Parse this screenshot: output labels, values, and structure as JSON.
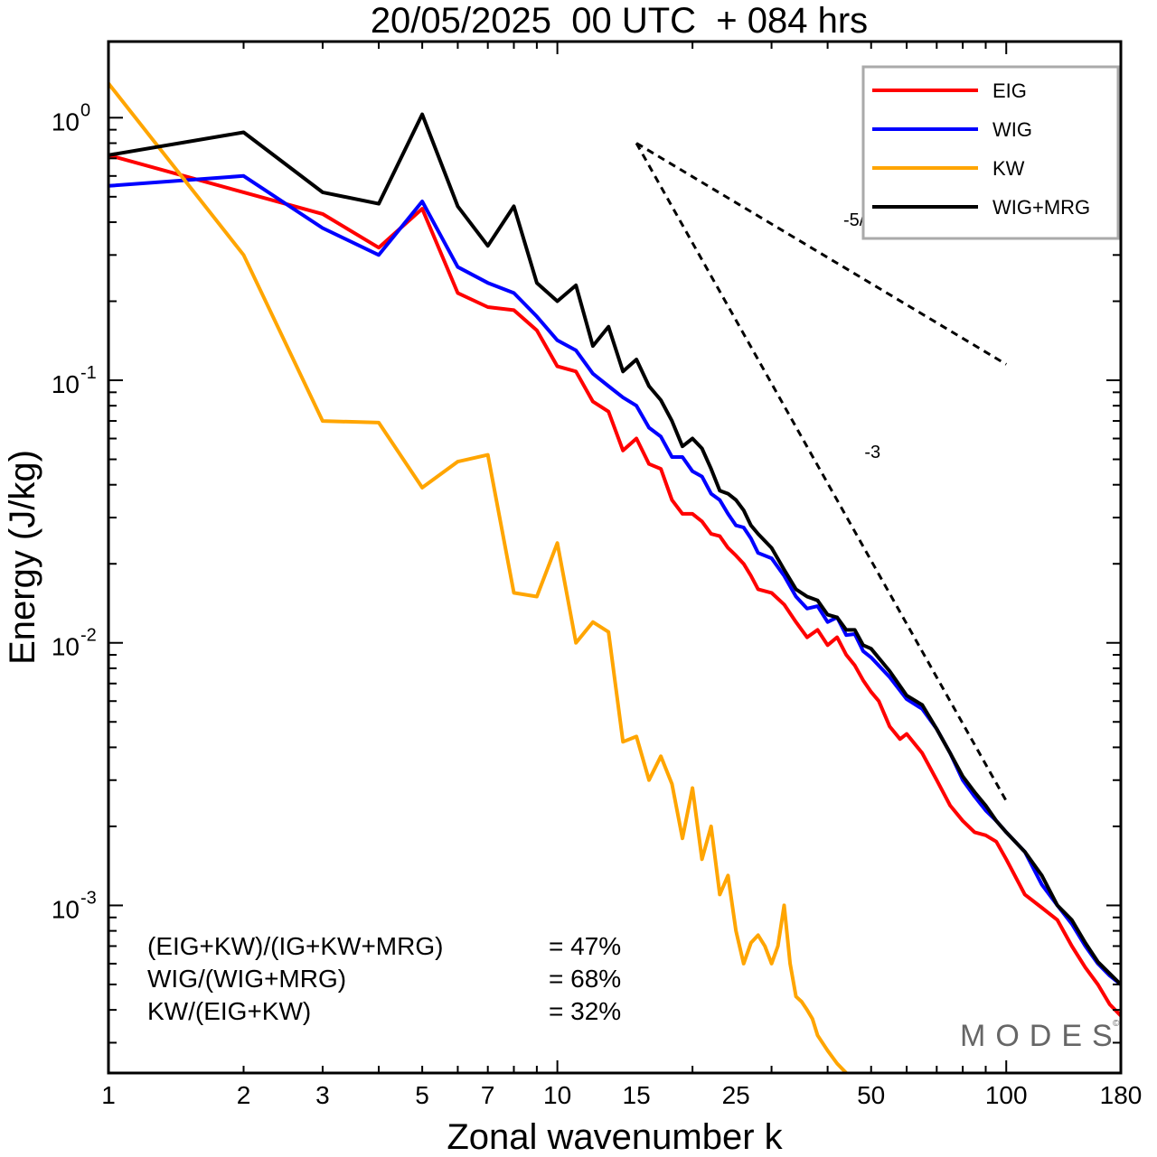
{
  "chart_data": {
    "type": "line",
    "title": "20/05/2025  00 UTC  + 084 hrs",
    "xlabel": "Zonal wavenumber k",
    "ylabel": "Energy (J/kg)",
    "xscale": "log",
    "yscale": "log",
    "xlim": [
      1,
      180
    ],
    "ylim": [
      0.00023,
      1.95
    ],
    "x_ticks": [
      1,
      2,
      3,
      5,
      7,
      10,
      15,
      25,
      50,
      100,
      180
    ],
    "x_tick_labels": [
      "1",
      "2",
      "3",
      "5",
      "7",
      "10",
      "15",
      "25",
      "50",
      "100",
      "180"
    ],
    "y_ticks": [
      {
        "value": 1,
        "base": "10",
        "exp": "0"
      },
      {
        "value": 0.1,
        "base": "10",
        "exp": "-1"
      },
      {
        "value": 0.01,
        "base": "10",
        "exp": "-2"
      },
      {
        "value": 0.001,
        "base": "10",
        "exp": "-3"
      }
    ],
    "grid": false,
    "legend_position": "top-right",
    "series": [
      {
        "name": "EIG",
        "color": "#ff0000",
        "points": [
          [
            1,
            0.72
          ],
          [
            2,
            0.52
          ],
          [
            3,
            0.43
          ],
          [
            4,
            0.32
          ],
          [
            5,
            0.45
          ],
          [
            6,
            0.215
          ],
          [
            7,
            0.19
          ],
          [
            8,
            0.185
          ],
          [
            9,
            0.155
          ],
          [
            10,
            0.113
          ],
          [
            11,
            0.108
          ],
          [
            12,
            0.083
          ],
          [
            13,
            0.076
          ],
          [
            14,
            0.054
          ],
          [
            15,
            0.06
          ],
          [
            16,
            0.048
          ],
          [
            17,
            0.046
          ],
          [
            18,
            0.035
          ],
          [
            19,
            0.031
          ],
          [
            20,
            0.031
          ],
          [
            21,
            0.029
          ],
          [
            22,
            0.026
          ],
          [
            23,
            0.0255
          ],
          [
            24,
            0.023
          ],
          [
            25,
            0.0215
          ],
          [
            26,
            0.02
          ],
          [
            27,
            0.018
          ],
          [
            28,
            0.016
          ],
          [
            30,
            0.0155
          ],
          [
            32,
            0.014
          ],
          [
            34,
            0.012
          ],
          [
            36,
            0.0105
          ],
          [
            38,
            0.0112
          ],
          [
            40,
            0.0098
          ],
          [
            42,
            0.0105
          ],
          [
            44,
            0.009
          ],
          [
            46,
            0.0082
          ],
          [
            48,
            0.0072
          ],
          [
            50,
            0.0065
          ],
          [
            52,
            0.006
          ],
          [
            55,
            0.0048
          ],
          [
            58,
            0.0043
          ],
          [
            60,
            0.0045
          ],
          [
            65,
            0.0038
          ],
          [
            70,
            0.003
          ],
          [
            75,
            0.0024
          ],
          [
            80,
            0.0021
          ],
          [
            85,
            0.0019
          ],
          [
            90,
            0.00185
          ],
          [
            95,
            0.00175
          ],
          [
            100,
            0.0015
          ],
          [
            110,
            0.0011
          ],
          [
            120,
            0.00098
          ],
          [
            130,
            0.00088
          ],
          [
            140,
            0.0007
          ],
          [
            150,
            0.00058
          ],
          [
            160,
            0.0005
          ],
          [
            170,
            0.00042
          ],
          [
            180,
            0.00038
          ]
        ]
      },
      {
        "name": "WIG",
        "color": "#0000ff",
        "points": [
          [
            1,
            0.55
          ],
          [
            2,
            0.6
          ],
          [
            3,
            0.38
          ],
          [
            4,
            0.3
          ],
          [
            5,
            0.48
          ],
          [
            6,
            0.27
          ],
          [
            7,
            0.235
          ],
          [
            8,
            0.215
          ],
          [
            9,
            0.175
          ],
          [
            10,
            0.142
          ],
          [
            11,
            0.13
          ],
          [
            12,
            0.106
          ],
          [
            13,
            0.095
          ],
          [
            14,
            0.086
          ],
          [
            15,
            0.08
          ],
          [
            16,
            0.066
          ],
          [
            17,
            0.061
          ],
          [
            18,
            0.051
          ],
          [
            19,
            0.051
          ],
          [
            20,
            0.045
          ],
          [
            21,
            0.043
          ],
          [
            22,
            0.037
          ],
          [
            23,
            0.035
          ],
          [
            24,
            0.031
          ],
          [
            25,
            0.028
          ],
          [
            26,
            0.0275
          ],
          [
            27,
            0.025
          ],
          [
            28,
            0.022
          ],
          [
            30,
            0.021
          ],
          [
            32,
            0.018
          ],
          [
            34,
            0.015
          ],
          [
            36,
            0.0135
          ],
          [
            38,
            0.0138
          ],
          [
            40,
            0.012
          ],
          [
            42,
            0.0125
          ],
          [
            44,
            0.0107
          ],
          [
            46,
            0.0108
          ],
          [
            48,
            0.0093
          ],
          [
            50,
            0.0088
          ],
          [
            55,
            0.0074
          ],
          [
            60,
            0.0061
          ],
          [
            65,
            0.0056
          ],
          [
            70,
            0.0047
          ],
          [
            75,
            0.0038
          ],
          [
            80,
            0.003
          ],
          [
            85,
            0.0026
          ],
          [
            90,
            0.0023
          ],
          [
            95,
            0.0021
          ],
          [
            100,
            0.0019
          ],
          [
            110,
            0.0016
          ],
          [
            120,
            0.0012
          ],
          [
            130,
            0.001
          ],
          [
            140,
            0.00085
          ],
          [
            150,
            0.0007
          ],
          [
            160,
            0.0006
          ],
          [
            170,
            0.00054
          ],
          [
            180,
            0.0005
          ]
        ]
      },
      {
        "name": "KW",
        "color": "#ffa500",
        "points": [
          [
            1,
            1.35
          ],
          [
            2,
            0.3
          ],
          [
            3,
            0.07
          ],
          [
            4,
            0.069
          ],
          [
            5,
            0.039
          ],
          [
            6,
            0.049
          ],
          [
            7,
            0.052
          ],
          [
            8,
            0.0155
          ],
          [
            9,
            0.015
          ],
          [
            10,
            0.024
          ],
          [
            11,
            0.01
          ],
          [
            12,
            0.012
          ],
          [
            13,
            0.011
          ],
          [
            14,
            0.0042
          ],
          [
            15,
            0.0044
          ],
          [
            16,
            0.003
          ],
          [
            17,
            0.0037
          ],
          [
            18,
            0.0029
          ],
          [
            19,
            0.0018
          ],
          [
            20,
            0.0028
          ],
          [
            21,
            0.0015
          ],
          [
            22,
            0.002
          ],
          [
            23,
            0.0011
          ],
          [
            24,
            0.0013
          ],
          [
            25,
            0.0008
          ],
          [
            26,
            0.0006
          ],
          [
            27,
            0.00072
          ],
          [
            28,
            0.00077
          ],
          [
            29,
            0.0007
          ],
          [
            30,
            0.0006
          ],
          [
            31,
            0.0007
          ],
          [
            32,
            0.001
          ],
          [
            33,
            0.0006
          ],
          [
            34,
            0.00045
          ],
          [
            35,
            0.00043
          ],
          [
            36,
            0.0004
          ],
          [
            37,
            0.00037
          ],
          [
            38,
            0.00032
          ],
          [
            40,
            0.00028
          ],
          [
            42,
            0.00025
          ],
          [
            44,
            0.00023
          ]
        ]
      },
      {
        "name": "WIG+MRG",
        "color": "#000000",
        "points": [
          [
            1,
            0.72
          ],
          [
            2,
            0.88
          ],
          [
            3,
            0.52
          ],
          [
            4,
            0.47
          ],
          [
            5,
            1.03
          ],
          [
            6,
            0.46
          ],
          [
            7,
            0.325
          ],
          [
            8,
            0.46
          ],
          [
            9,
            0.235
          ],
          [
            10,
            0.2
          ],
          [
            11,
            0.23
          ],
          [
            12,
            0.135
          ],
          [
            13,
            0.16
          ],
          [
            14,
            0.108
          ],
          [
            15,
            0.12
          ],
          [
            16,
            0.095
          ],
          [
            17,
            0.084
          ],
          [
            18,
            0.07
          ],
          [
            19,
            0.056
          ],
          [
            20,
            0.06
          ],
          [
            21,
            0.055
          ],
          [
            22,
            0.046
          ],
          [
            23,
            0.038
          ],
          [
            24,
            0.037
          ],
          [
            25,
            0.035
          ],
          [
            26,
            0.032
          ],
          [
            27,
            0.028
          ],
          [
            28,
            0.026
          ],
          [
            30,
            0.023
          ],
          [
            32,
            0.019
          ],
          [
            34,
            0.016
          ],
          [
            36,
            0.015
          ],
          [
            38,
            0.0145
          ],
          [
            40,
            0.0128
          ],
          [
            42,
            0.0125
          ],
          [
            44,
            0.0112
          ],
          [
            46,
            0.0112
          ],
          [
            48,
            0.0098
          ],
          [
            50,
            0.0095
          ],
          [
            55,
            0.0078
          ],
          [
            60,
            0.0063
          ],
          [
            65,
            0.0058
          ],
          [
            70,
            0.0047
          ],
          [
            75,
            0.0038
          ],
          [
            80,
            0.0031
          ],
          [
            85,
            0.0027
          ],
          [
            90,
            0.0024
          ],
          [
            95,
            0.0021
          ],
          [
            100,
            0.0019
          ],
          [
            110,
            0.0016
          ],
          [
            120,
            0.0013
          ],
          [
            130,
            0.001
          ],
          [
            140,
            0.00088
          ],
          [
            150,
            0.00072
          ],
          [
            160,
            0.00061
          ],
          [
            170,
            0.00055
          ],
          [
            180,
            0.0005
          ]
        ]
      }
    ],
    "reference_lines": [
      {
        "label": "-5/3",
        "points": [
          [
            15,
            0.8
          ],
          [
            100,
            0.115
          ]
        ],
        "style": "dashed"
      },
      {
        "label": "-3",
        "points": [
          [
            15,
            0.8
          ],
          [
            100,
            0.0025
          ]
        ],
        "style": "dashed"
      }
    ],
    "stats": [
      {
        "label": "(EIG+KW)/(IG+KW+MRG)",
        "value": "= 47%"
      },
      {
        "label": "WIG/(WIG+MRG)",
        "value": "= 68%"
      },
      {
        "label": "KW/(EIG+KW)",
        "value": "= 32%"
      }
    ],
    "logo": {
      "text": "MODES",
      "mark": "©"
    }
  }
}
